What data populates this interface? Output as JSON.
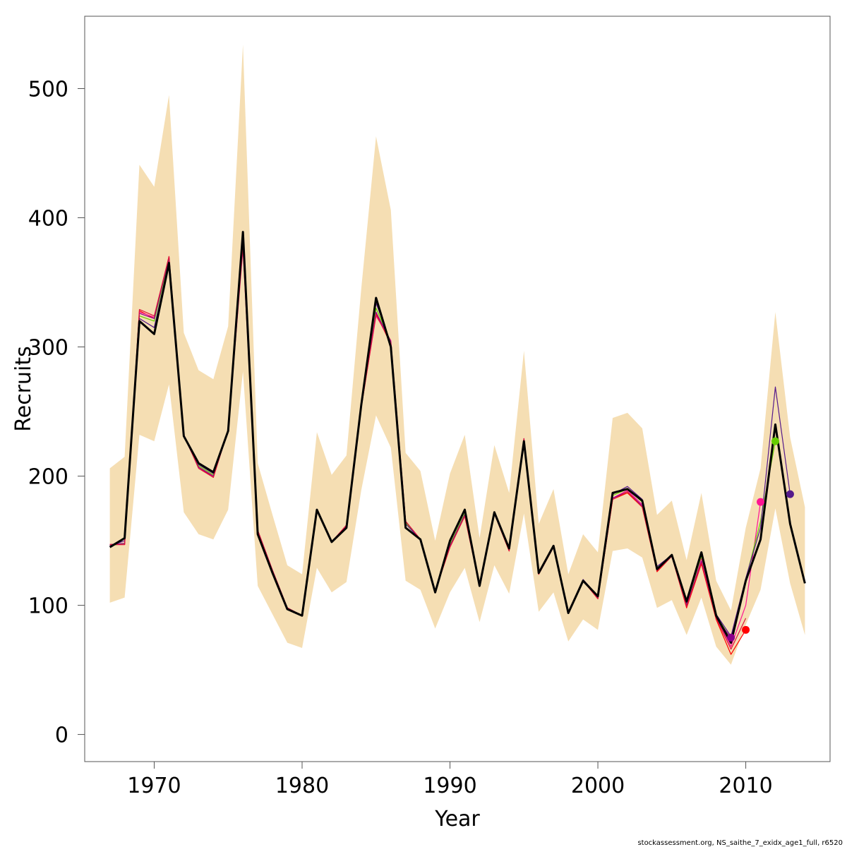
{
  "chart_data": {
    "type": "line",
    "xlabel": "Year",
    "ylabel": "Recruits",
    "xlim": [
      1965.3,
      2015.7
    ],
    "ylim": [
      -21,
      556
    ],
    "x_ticks": [
      1970,
      1980,
      1990,
      2000,
      2010
    ],
    "y_ticks": [
      0,
      100,
      200,
      300,
      400,
      500
    ],
    "grid": false,
    "legend": "none",
    "footer": "stockassessment.org, NS_saithe_7_exidx_age1_full, r6520",
    "colors": {
      "band": "#f5deb3",
      "base": "#000000",
      "peels": [
        "#ff0000",
        "#ff1493",
        "#66cd00",
        "#551a8b",
        "#8b008b",
        "#dc143c"
      ]
    },
    "confidence_band": {
      "years": [
        1967,
        1968,
        1969,
        1970,
        1971,
        1972,
        1973,
        1974,
        1975,
        1976,
        1977,
        1978,
        1979,
        1980,
        1981,
        1982,
        1983,
        1984,
        1985,
        1986,
        1987,
        1988,
        1989,
        1990,
        1991,
        1992,
        1993,
        1994,
        1995,
        1996,
        1997,
        1998,
        1999,
        2000,
        2001,
        2002,
        2003,
        2004,
        2005,
        2006,
        2007,
        2008,
        2009,
        2010,
        2011,
        2012,
        2013,
        2014
      ],
      "upper": [
        206,
        215,
        441,
        424,
        495,
        311,
        282,
        275,
        316,
        534,
        210,
        170,
        131,
        124,
        234,
        201,
        216,
        345,
        463,
        406,
        218,
        204,
        150,
        202,
        232,
        152,
        224,
        187,
        297,
        163,
        190,
        124,
        155,
        141,
        245,
        249,
        237,
        170,
        181,
        135,
        187,
        119,
        96,
        160,
        206,
        327,
        230,
        176
      ],
      "lower": [
        102,
        106,
        232,
        227,
        271,
        172,
        155,
        151,
        174,
        281,
        115,
        93,
        71,
        67,
        129,
        110,
        118,
        189,
        247,
        222,
        119,
        112,
        82,
        110,
        129,
        87,
        131,
        109,
        171,
        95,
        110,
        72,
        89,
        81,
        142,
        144,
        137,
        98,
        104,
        77,
        106,
        68,
        54,
        85,
        112,
        175,
        117,
        77
      ]
    },
    "series": [
      {
        "years": [
          1967,
          1968,
          1969,
          1970,
          1971,
          1972,
          1973,
          1974,
          1975,
          1976,
          1977,
          1978,
          1979,
          1980,
          1981,
          1982,
          1983,
          1984,
          1985,
          1986,
          1987,
          1988,
          1989,
          1990,
          1991,
          1992,
          1993,
          1994,
          1995,
          1996,
          1997,
          1998,
          1999,
          2000,
          2001,
          2002,
          2003,
          2004,
          2005,
          2006,
          2007,
          2008,
          2009,
          2010
        ],
        "values": [
          147,
          147,
          328,
          322,
          370,
          232,
          207,
          199,
          236,
          383,
          158,
          127,
          98,
          92,
          174,
          149,
          162,
          253,
          326,
          302,
          165,
          151,
          111,
          145,
          169,
          115,
          171,
          142,
          229,
          124,
          145,
          94,
          119,
          105,
          182,
          187,
          176,
          126,
          138,
          98,
          132,
          89,
          62,
          81
        ]
      },
      {
        "years": [
          1967,
          1968,
          1969,
          1970,
          1971,
          1972,
          1973,
          1974,
          1975,
          1976,
          1977,
          1978,
          1979,
          1980,
          1981,
          1982,
          1983,
          1984,
          1985,
          1986,
          1987,
          1988,
          1989,
          1990,
          1991,
          1992,
          1993,
          1994,
          1995,
          1996,
          1997,
          1998,
          1999,
          2000,
          2001,
          2002,
          2003,
          2004,
          2005,
          2006,
          2007,
          2008,
          2009,
          2010,
          2011
        ],
        "values": [
          147,
          147,
          327,
          323,
          369,
          232,
          207,
          200,
          235,
          376,
          158,
          127,
          98,
          92,
          174,
          149,
          162,
          254,
          324,
          305,
          165,
          151,
          111,
          146,
          170,
          115,
          171,
          143,
          229,
          125,
          145,
          95,
          119,
          106,
          183,
          189,
          178,
          128,
          138,
          99,
          136,
          91,
          68,
          100,
          180
        ]
      },
      {
        "years": [
          1967,
          1968,
          1969,
          1970,
          1971,
          1972,
          1973,
          1974,
          1975,
          1976,
          1977,
          1978,
          1979,
          1980,
          1981,
          1982,
          1983,
          1984,
          1985,
          1986,
          1987,
          1988,
          1989,
          1990,
          1991,
          1992,
          1993,
          1994,
          1995,
          1996,
          1997,
          1998,
          1999,
          2000,
          2001,
          2002,
          2003,
          2004,
          2005,
          2006,
          2007,
          2008,
          2009,
          2010,
          2011,
          2012
        ],
        "values": [
          146,
          148,
          324,
          320,
          368,
          231,
          208,
          201,
          235,
          380,
          157,
          126,
          98,
          92,
          174,
          149,
          161,
          255,
          330,
          304,
          164,
          151,
          111,
          147,
          171,
          115,
          171,
          143,
          228,
          125,
          145,
          95,
          119,
          106,
          185,
          190,
          180,
          129,
          138,
          101,
          138,
          92,
          74,
          120,
          165,
          227
        ]
      },
      {
        "years": [
          1967,
          1968,
          1969,
          1970,
          1971,
          1972,
          1973,
          1974,
          1975,
          1976,
          1977,
          1978,
          1979,
          1980,
          1981,
          1982,
          1983,
          1984,
          1985,
          1986,
          1987,
          1988,
          1989,
          1990,
          1991,
          1992,
          1993,
          1994,
          1995,
          1996,
          1997,
          1998,
          1999,
          2000,
          2001,
          2002,
          2003,
          2004,
          2005,
          2006,
          2007,
          2008,
          2009,
          2010,
          2011,
          2012,
          2013
        ],
        "values": [
          146,
          150,
          322,
          315,
          366,
          231,
          209,
          202,
          235,
          385,
          157,
          126,
          98,
          92,
          174,
          149,
          161,
          256,
          334,
          303,
          163,
          151,
          111,
          149,
          173,
          115,
          172,
          144,
          228,
          125,
          146,
          95,
          120,
          107,
          186,
          192,
          182,
          130,
          139,
          102,
          140,
          93,
          76,
          121,
          160,
          269,
          186
        ]
      },
      {
        "years": [
          1967,
          1968,
          1969,
          1970,
          1971,
          1972,
          1973,
          1974,
          1975,
          1976,
          1977,
          1978,
          1979,
          1980,
          1981,
          1982,
          1983,
          1984,
          1985,
          1986,
          1987,
          1988,
          1989,
          1990,
          1991,
          1992,
          1993,
          1994,
          1995,
          1996,
          1997,
          1998,
          1999,
          2000,
          2001,
          2002,
          2003,
          2004,
          2005,
          2006,
          2007,
          2008,
          2009
        ],
        "values": [
          147,
          148,
          326,
          322,
          369,
          231,
          207,
          200,
          235,
          381,
          158,
          127,
          98,
          92,
          174,
          149,
          162,
          254,
          327,
          304,
          165,
          151,
          111,
          146,
          170,
          115,
          171,
          143,
          229,
          125,
          145,
          95,
          119,
          106,
          183,
          188,
          177,
          127,
          138,
          100,
          134,
          90,
          75
        ]
      },
      {
        "years": [
          1967,
          1968,
          1969,
          1970,
          1971,
          1972,
          1973,
          1974,
          1975,
          1976,
          1977,
          1978,
          1979,
          1980,
          1981,
          1982,
          1983,
          1984,
          1985,
          1986,
          1987,
          1988,
          1989,
          1990,
          1991,
          1992,
          1993,
          1994,
          1995,
          1996,
          1997,
          1998,
          1999,
          2000,
          2001,
          2002,
          2003,
          2004,
          2005,
          2006,
          2007,
          2008,
          2009,
          2010
        ],
        "values": [
          147,
          147,
          329,
          324,
          370,
          232,
          206,
          199,
          236,
          378,
          158,
          127,
          98,
          92,
          174,
          149,
          162,
          253,
          325,
          303,
          165,
          151,
          111,
          145,
          169,
          115,
          171,
          142,
          229,
          124,
          145,
          94,
          119,
          105,
          182,
          188,
          176,
          127,
          138,
          99,
          133,
          90,
          66,
          90
        ]
      },
      {
        "years": [
          1967,
          1968,
          1969,
          1970,
          1971,
          1972,
          1973,
          1974,
          1975,
          1976,
          1977,
          1978,
          1979,
          1980,
          1981,
          1982,
          1983,
          1984,
          1985,
          1986,
          1987,
          1988,
          1989,
          1990,
          1991,
          1992,
          1993,
          1994,
          1995,
          1996,
          1997,
          1998,
          1999,
          2000,
          2001,
          2002,
          2003,
          2004,
          2005,
          2006,
          2007,
          2008,
          2009,
          2010,
          2011,
          2012,
          2013,
          2014
        ],
        "values": [
          145,
          152,
          320,
          310,
          365,
          231,
          210,
          203,
          235,
          389,
          155,
          125,
          97,
          92,
          174,
          149,
          160,
          255,
          338,
          300,
          160,
          151,
          110,
          150,
          174,
          115,
          172,
          144,
          227,
          125,
          146,
          94,
          119,
          107,
          187,
          190,
          181,
          128,
          139,
          103,
          141,
          92,
          71,
          119,
          151,
          240,
          163,
          117
        ]
      }
    ],
    "terminal_points": [
      {
        "year": 2010,
        "value": 81
      },
      {
        "year": 2011,
        "value": 180
      },
      {
        "year": 2012,
        "value": 227
      },
      {
        "year": 2013,
        "value": 186
      },
      {
        "year": 2009,
        "value": 75
      }
    ]
  }
}
